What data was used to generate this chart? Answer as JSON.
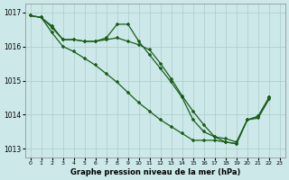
{
  "background_color": "#cce8e8",
  "grid_color": "#aacccc",
  "line_color": "#1a5e1a",
  "xlabel": "Graphe pression niveau de la mer (hPa)",
  "ylim": [
    1012.75,
    1017.25
  ],
  "xlim": [
    -0.5,
    23.5
  ],
  "yticks": [
    1013,
    1014,
    1015,
    1016,
    1017
  ],
  "xticks": [
    0,
    1,
    2,
    3,
    4,
    5,
    6,
    7,
    8,
    9,
    10,
    11,
    12,
    13,
    14,
    15,
    16,
    17,
    18,
    19,
    20,
    21,
    22,
    23
  ],
  "series_a": [
    1016.9,
    1016.85,
    1016.6,
    1016.2,
    1016.2,
    1016.15,
    1016.15,
    1016.2,
    1016.25,
    1016.15,
    1016.05,
    1015.9,
    1015.5,
    1015.05,
    1014.55,
    1014.1,
    1013.7,
    1013.35,
    1013.3,
    1013.2,
    1013.85,
    1013.9,
    1014.45,
    null
  ],
  "series_b": [
    1016.9,
    1016.85,
    1016.55,
    1016.2,
    1016.2,
    1016.15,
    1016.15,
    1016.25,
    1016.65,
    1016.65,
    1016.15,
    1015.75,
    1015.35,
    1014.95,
    1014.5,
    1013.85,
    1013.5,
    1013.35,
    1013.2,
    1013.15,
    1013.85,
    1013.95,
    1014.5,
    null
  ],
  "series_c": [
    1016.9,
    1016.85,
    1016.4,
    1016.0,
    1015.85,
    1015.65,
    1015.45,
    1015.2,
    1014.95,
    1014.65,
    1014.35,
    1014.1,
    1013.85,
    1013.65,
    1013.45,
    1013.25,
    1013.25,
    1013.25,
    1013.2,
    1013.15,
    1013.85,
    1013.95,
    1014.5,
    null
  ]
}
